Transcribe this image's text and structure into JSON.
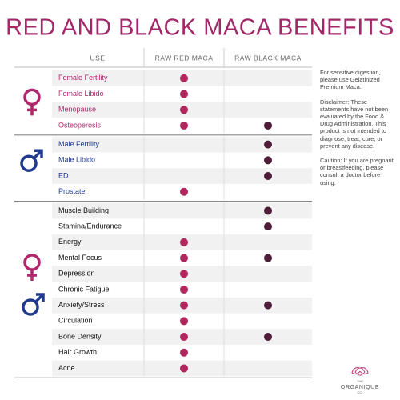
{
  "title": "RED AND BLACK MACA BENEFITS",
  "columns": [
    "USE",
    "RAW RED MACA",
    "RAW BLACK MACA"
  ],
  "groups": [
    {
      "symbol": "female",
      "rows": [
        {
          "label": "Female Fertility",
          "red": true,
          "black": false
        },
        {
          "label": "Female Libido",
          "red": true,
          "black": false
        },
        {
          "label": "Menopause",
          "red": true,
          "black": false
        },
        {
          "label": "Osteoperosis",
          "red": true,
          "black": true
        }
      ]
    },
    {
      "symbol": "male",
      "rows": [
        {
          "label": "Male Fertility",
          "red": false,
          "black": true
        },
        {
          "label": "Male Libido",
          "red": false,
          "black": true
        },
        {
          "label": "ED",
          "red": false,
          "black": true
        },
        {
          "label": "Prostate",
          "red": true,
          "black": false
        }
      ]
    },
    {
      "symbol": "both",
      "rows": [
        {
          "label": "Muscle Building",
          "red": false,
          "black": true
        },
        {
          "label": "Stamina/Endurance",
          "red": false,
          "black": true
        },
        {
          "label": "Energy",
          "red": true,
          "black": false
        },
        {
          "label": "Mental Focus",
          "red": true,
          "black": true
        },
        {
          "label": "Depression",
          "red": true,
          "black": false
        },
        {
          "label": "Chronic Fatigue",
          "red": true,
          "black": false
        },
        {
          "label": "Anxiety/Stress",
          "red": true,
          "black": true
        },
        {
          "label": "Circulation",
          "red": true,
          "black": false
        },
        {
          "label": "Bone Density",
          "red": true,
          "black": true
        },
        {
          "label": "Hair Growth",
          "red": true,
          "black": false
        },
        {
          "label": "Acne",
          "red": true,
          "black": false
        }
      ]
    }
  ],
  "notes": [
    "For sensitive digestion, please use Gelatinized Premium Maca.",
    "Disclaimer: These statements have not been evaluated by the Food & Drug Administration. This product is not intended to diagnose, treat, cure, or prevent any disease.",
    "Caution: If you are pregnant or breastfeeding, please consult a doctor before using."
  ],
  "logo": {
    "top": "THE",
    "name": "ORGANIQUE",
    "bottom": "CO."
  }
}
